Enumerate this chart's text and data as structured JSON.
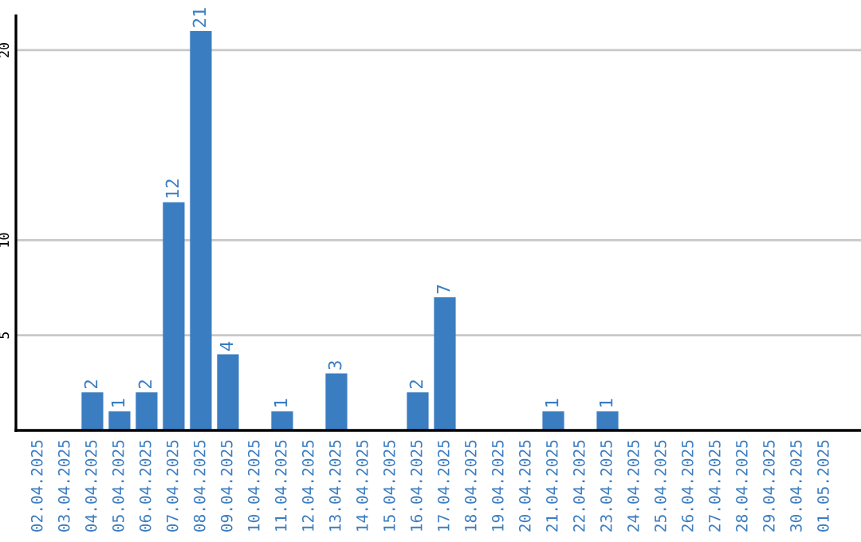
{
  "chart_data": {
    "type": "bar",
    "categories": [
      "02.04.2025",
      "03.04.2025",
      "04.04.2025",
      "05.04.2025",
      "06.04.2025",
      "07.04.2025",
      "08.04.2025",
      "09.04.2025",
      "10.04.2025",
      "11.04.2025",
      "12.04.2025",
      "13.04.2025",
      "14.04.2025",
      "15.04.2025",
      "16.04.2025",
      "17.04.2025",
      "18.04.2025",
      "19.04.2025",
      "20.04.2025",
      "21.04.2025",
      "22.04.2025",
      "23.04.2025",
      "24.04.2025",
      "25.04.2025",
      "26.04.2025",
      "27.04.2025",
      "28.04.2025",
      "29.04.2025",
      "30.04.2025",
      "01.05.2025"
    ],
    "values": [
      0,
      0,
      2,
      1,
      2,
      12,
      21,
      4,
      0,
      1,
      0,
      3,
      0,
      0,
      2,
      7,
      0,
      0,
      0,
      1,
      0,
      1,
      0,
      0,
      0,
      0,
      0,
      0,
      0,
      0
    ],
    "value_labels": [
      null,
      null,
      "2",
      "1",
      "2",
      "12",
      "21",
      "4",
      null,
      "1",
      null,
      "3",
      null,
      null,
      "2",
      "7",
      null,
      null,
      null,
      "1",
      null,
      "1",
      null,
      null,
      null,
      null,
      null,
      null,
      null,
      null
    ],
    "color": "#3b7dc1",
    "ylim": [
      0,
      21.8
    ],
    "yticks": [
      5,
      10,
      20
    ],
    "grid": "y"
  }
}
